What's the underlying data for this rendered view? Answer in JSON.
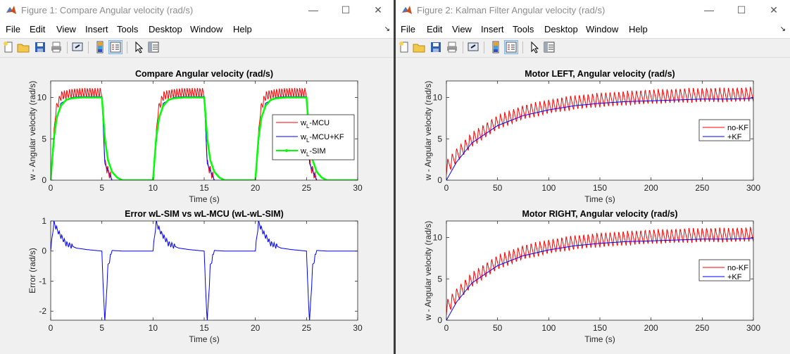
{
  "windows": [
    {
      "title": "Figure 1: Compare Angular velocity (rad/s)",
      "menu": [
        "File",
        "Edit",
        "View",
        "Insert",
        "Tools",
        "Desktop",
        "Window",
        "Help"
      ],
      "menu_arrow": "↘",
      "icons": [
        "new-figure-icon",
        "open-folder-icon",
        "save-icon",
        "print-icon",
        "link-icon",
        "colorbar-icon",
        "legend-icon",
        "pointer-icon",
        "property-editor-icon"
      ]
    },
    {
      "title": "Figure 2: Kalman Filter Angular velocity (rad/s)",
      "menu": [
        "File",
        "Edit",
        "View",
        "Insert",
        "Tools",
        "Desktop",
        "Window",
        "Help"
      ],
      "menu_arrow": "↘",
      "icons": [
        "new-figure-icon",
        "open-folder-icon",
        "save-icon",
        "print-icon",
        "link-icon",
        "colorbar-icon",
        "legend-icon",
        "pointer-icon",
        "property-editor-icon"
      ]
    }
  ],
  "window_controls": {
    "minimize": "—",
    "maximize": "☐",
    "close": "✕"
  },
  "colors": {
    "red": "#ff0000",
    "blue": "#0000ff",
    "green": "#00ff00",
    "axes_bg": "#ffffff",
    "figure_bg": "#f0f0f0"
  },
  "chart_data": [
    {
      "type": "line",
      "title": "Compare Angular velocity (rad/s)",
      "xlabel": "Time (s)",
      "ylabel": "w - Angular velocity (rad/s)",
      "xlim": [
        0,
        30
      ],
      "ylim": [
        0,
        12
      ],
      "xticks": [
        "0",
        "5",
        "10",
        "15",
        "20",
        "25",
        "30"
      ],
      "yticks": [
        "0",
        "5",
        "10"
      ],
      "legend_position": "right",
      "series": [
        {
          "name": "w",
          "sub": "L",
          "suffix": "-MCU",
          "color": "#ff0000",
          "x": [
            0,
            0.5,
            1,
            2,
            3,
            4,
            5,
            5.3,
            6,
            10,
            10.5,
            11,
            12,
            13,
            14,
            15,
            15.3,
            16,
            20,
            20.5,
            21,
            22,
            23,
            24,
            25,
            25.3,
            26,
            30
          ],
          "y": [
            0,
            8.5,
            10.2,
            10.5,
            10.6,
            10.6,
            10.6,
            2,
            0,
            0,
            8.5,
            10.2,
            10.5,
            10.6,
            10.6,
            10.6,
            2,
            0,
            0,
            8.5,
            10.2,
            10.5,
            10.6,
            10.6,
            10.6,
            2,
            0,
            0
          ],
          "oscillation": 1.2
        },
        {
          "name": "w",
          "sub": "L",
          "suffix": "-MCU+KF",
          "color": "#0000ff",
          "x": [
            0,
            0.5,
            1,
            2,
            3,
            4,
            5,
            5.3,
            6,
            10,
            10.5,
            11,
            12,
            13,
            14,
            15,
            15.3,
            16,
            20,
            20.5,
            21,
            22,
            23,
            24,
            25,
            25.3,
            26,
            30
          ],
          "y": [
            0,
            7,
            9.3,
            10,
            10.1,
            10.1,
            10.1,
            2,
            0,
            0,
            7,
            9.3,
            10,
            10.1,
            10.1,
            10.1,
            2,
            0,
            0,
            7,
            9.3,
            10,
            10.1,
            10.1,
            10.1,
            2,
            0,
            0
          ]
        },
        {
          "name": "w",
          "sub": "L",
          "suffix": "-SIM",
          "color": "#00ff00",
          "x": [
            0,
            0.3,
            0.6,
            1,
            1.5,
            2,
            3,
            5,
            5.3,
            5.6,
            6,
            6.5,
            7,
            10,
            10.3,
            10.6,
            11,
            11.5,
            12,
            13,
            15,
            15.3,
            15.6,
            16,
            16.5,
            17,
            20,
            20.3,
            20.6,
            21,
            21.5,
            22,
            23,
            25,
            25.3,
            25.6,
            26,
            26.5,
            27,
            30
          ],
          "y": [
            0,
            5,
            7.6,
            9,
            9.7,
            9.9,
            10,
            10,
            5,
            2.4,
            1,
            0.3,
            0,
            0,
            5,
            7.6,
            9,
            9.7,
            9.9,
            10,
            10,
            5,
            2.4,
            1,
            0.3,
            0,
            0,
            5,
            7.6,
            9,
            9.7,
            9.9,
            10,
            10,
            5,
            2.4,
            1,
            0.3,
            0,
            0
          ]
        }
      ]
    },
    {
      "type": "line",
      "title": "Error wL-SIM vs wL-MCU (wL-wL-SIM)",
      "xlabel": "Time (s)",
      "ylabel": "Error (rad/s)",
      "xlim": [
        0,
        30
      ],
      "ylim": [
        -2.3,
        1
      ],
      "xticks": [
        "0",
        "5",
        "10",
        "15",
        "20",
        "25",
        "30"
      ],
      "yticks": [
        "-2",
        "-1",
        "0",
        "1"
      ],
      "series": [
        {
          "name": "",
          "color": "#0000ff",
          "x": [
            0,
            0.3,
            0.8,
            1.5,
            2.5,
            3.5,
            5,
            5.1,
            5.3,
            5.6,
            6,
            7,
            10,
            10.3,
            10.8,
            11.5,
            12.5,
            13.5,
            15,
            15.1,
            15.3,
            15.6,
            16,
            17,
            20,
            20.3,
            20.8,
            21.5,
            22.5,
            23.5,
            25,
            25.1,
            25.3,
            25.6,
            26,
            27,
            30
          ],
          "y": [
            0,
            0.95,
            0.6,
            0.25,
            0.1,
            0.05,
            0,
            -1,
            -2.35,
            -0.5,
            0.02,
            0,
            0,
            0.95,
            0.6,
            0.25,
            0.1,
            0.05,
            0,
            -1,
            -2.35,
            -0.5,
            0.02,
            0,
            0,
            0.95,
            0.6,
            0.25,
            0.1,
            0.05,
            0,
            -1,
            -2.35,
            -0.5,
            0.02,
            0,
            0
          ],
          "oscillation": 0.18
        }
      ]
    },
    {
      "type": "line",
      "title": "Motor LEFT, Angular velocity (rad/s)",
      "xlabel": "Time (s)",
      "ylabel": "w - Angular velocity (rad/s)",
      "xlim": [
        0,
        300
      ],
      "ylim": [
        0,
        12
      ],
      "xticks": [
        "0",
        "50",
        "100",
        "150",
        "200",
        "250",
        "300"
      ],
      "yticks": [
        "0",
        "5",
        "10"
      ],
      "legend_position": "right",
      "series": [
        {
          "name": "no-KF",
          "color": "#ff0000",
          "x": [
            0,
            10,
            25,
            50,
            75,
            100,
            125,
            150,
            175,
            200,
            225,
            250,
            275,
            300
          ],
          "y": [
            1.5,
            3,
            4.9,
            7,
            8.2,
            8.9,
            9.4,
            9.7,
            9.9,
            10.1,
            10.2,
            10.3,
            10.3,
            10.4
          ],
          "oscillation": 1.8
        },
        {
          "name": "+KF",
          "color": "#0000ff",
          "x": [
            0,
            10,
            25,
            50,
            75,
            100,
            125,
            150,
            175,
            200,
            225,
            250,
            275,
            300
          ],
          "y": [
            0,
            2.2,
            4.5,
            6.6,
            7.8,
            8.5,
            9,
            9.3,
            9.5,
            9.6,
            9.7,
            9.8,
            9.8,
            9.9
          ]
        }
      ]
    },
    {
      "type": "line",
      "title": "Motor RIGHT, Angular velocity (rad/s)",
      "xlabel": "Time (s)",
      "ylabel": "w - Angular velocity (rad/s)",
      "xlim": [
        0,
        300
      ],
      "ylim": [
        0,
        12
      ],
      "xticks": [
        "0",
        "50",
        "100",
        "150",
        "200",
        "250",
        "300"
      ],
      "yticks": [
        "0",
        "5",
        "10"
      ],
      "legend_position": "right",
      "series": [
        {
          "name": "no-KF",
          "color": "#ff0000",
          "x": [
            0,
            10,
            25,
            50,
            75,
            100,
            125,
            150,
            175,
            200,
            225,
            250,
            275,
            300
          ],
          "y": [
            1.5,
            3,
            4.9,
            7,
            8.2,
            8.9,
            9.4,
            9.7,
            9.9,
            10.1,
            10.2,
            10.3,
            10.3,
            10.4
          ],
          "oscillation": 1.8
        },
        {
          "name": "+KF",
          "color": "#0000ff",
          "x": [
            0,
            10,
            25,
            50,
            75,
            100,
            125,
            150,
            175,
            200,
            225,
            250,
            275,
            300
          ],
          "y": [
            0,
            2.2,
            4.5,
            6.6,
            7.8,
            8.5,
            9,
            9.3,
            9.5,
            9.6,
            9.7,
            9.8,
            9.8,
            9.9
          ]
        }
      ]
    }
  ]
}
